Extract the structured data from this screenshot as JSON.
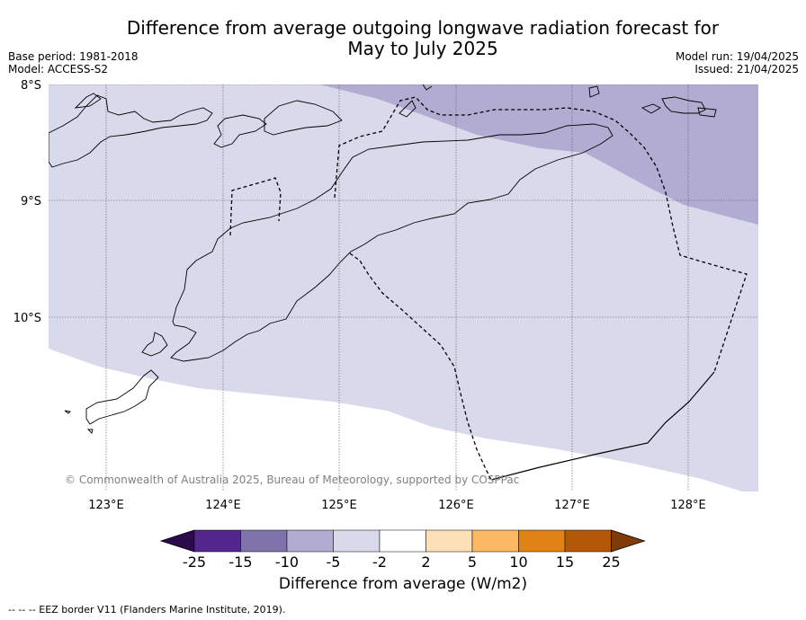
{
  "title_line1": "Difference from average outgoing longwave radiation forecast for",
  "title_line2": "May to July 2025",
  "base_period": "Base period: 1981-2018",
  "model": "Model: ACCESS-S2",
  "model_run": "Model run: 19/04/2025",
  "issued": "Issued: 21/04/2025",
  "lat_labels": [
    "8°S",
    "9°S",
    "10°S"
  ],
  "lon_labels": [
    "123°E",
    "124°E",
    "125°E",
    "126°E",
    "127°E",
    "128°E"
  ],
  "copyright": "© Commonwealth of Australia 2025, Bureau of Meteorology, supported by COSPPac",
  "colorbar": {
    "label": "Difference from average (W/m2)",
    "ticks": [
      "-25",
      "-15",
      "-10",
      "-5",
      "-2",
      "2",
      "5",
      "10",
      "15",
      "25"
    ],
    "colors": [
      "#2d0a4b",
      "#54278f",
      "#8073ac",
      "#b2abd2",
      "#d8daeb",
      "#ffffff",
      "#fee0b6",
      "#fdb863",
      "#e08214",
      "#b35806",
      "#7f3b08"
    ]
  },
  "footnote": "-- -- -- EEZ border V11 (Flanders Marine Institute, 2019)."
}
